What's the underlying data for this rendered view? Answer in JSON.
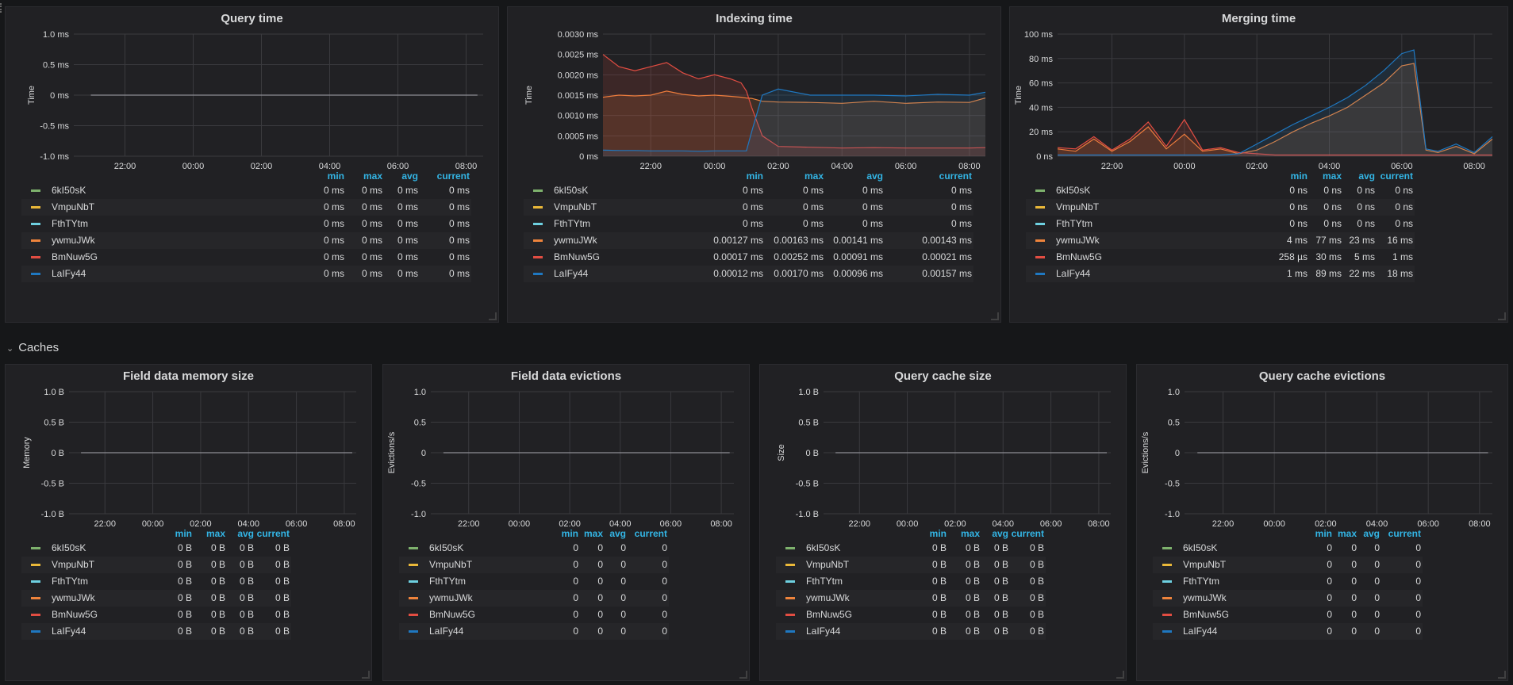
{
  "row_caches": {
    "label": "Caches",
    "chevron_icon": "chevron-down-icon"
  },
  "series_colors": [
    "#7eb26d",
    "#eab839",
    "#6ed0e0",
    "#ef843c",
    "#e24d42",
    "#1f78c1"
  ],
  "series_names": [
    "6kI50sK",
    "VmpuNbT",
    "FthTYtm",
    "ywmuJWk",
    "BmNuw5G",
    "LaIFy44"
  ],
  "legend_headers": [
    "min",
    "max",
    "avg",
    "current"
  ],
  "x_ticks": [
    "22:00",
    "00:00",
    "02:00",
    "04:00",
    "06:00",
    "08:00"
  ],
  "panels": [
    {
      "id": "query_time",
      "title": "Query time",
      "ylabel": "Time",
      "yticks": [
        "1.0 ms",
        "0.5 ms",
        "0 ms",
        "-0.5 ms",
        "-1.0 ms"
      ],
      "rows": [
        [
          "0 ms",
          "0 ms",
          "0 ms",
          "0 ms"
        ],
        [
          "0 ms",
          "0 ms",
          "0 ms",
          "0 ms"
        ],
        [
          "0 ms",
          "0 ms",
          "0 ms",
          "0 ms"
        ],
        [
          "0 ms",
          "0 ms",
          "0 ms",
          "0 ms"
        ],
        [
          "0 ms",
          "0 ms",
          "0 ms",
          "0 ms"
        ],
        [
          "0 ms",
          "0 ms",
          "0 ms",
          "0 ms"
        ]
      ]
    },
    {
      "id": "indexing_time",
      "title": "Indexing time",
      "ylabel": "Time",
      "yticks": [
        "0.0030 ms",
        "0.0025 ms",
        "0.0020 ms",
        "0.0015 ms",
        "0.0010 ms",
        "0.0005 ms",
        "0 ms"
      ],
      "rows": [
        [
          "0 ms",
          "0 ms",
          "0 ms",
          "0 ms"
        ],
        [
          "0 ms",
          "0 ms",
          "0 ms",
          "0 ms"
        ],
        [
          "0 ms",
          "0 ms",
          "0 ms",
          "0 ms"
        ],
        [
          "0.00127 ms",
          "0.00163 ms",
          "0.00141 ms",
          "0.00143 ms"
        ],
        [
          "0.00017 ms",
          "0.00252 ms",
          "0.00091 ms",
          "0.00021 ms"
        ],
        [
          "0.00012 ms",
          "0.00170 ms",
          "0.00096 ms",
          "0.00157 ms"
        ]
      ]
    },
    {
      "id": "merging_time",
      "title": "Merging time",
      "ylabel": "Time",
      "yticks": [
        "100 ms",
        "80 ms",
        "60 ms",
        "40 ms",
        "20 ms",
        "0 ns"
      ],
      "rows": [
        [
          "0 ns",
          "0 ns",
          "0 ns",
          "0 ns"
        ],
        [
          "0 ns",
          "0 ns",
          "0 ns",
          "0 ns"
        ],
        [
          "0 ns",
          "0 ns",
          "0 ns",
          "0 ns"
        ],
        [
          "4 ms",
          "77 ms",
          "23 ms",
          "16 ms"
        ],
        [
          "258 µs",
          "30 ms",
          "5 ms",
          "1 ms"
        ],
        [
          "1 ms",
          "89 ms",
          "22 ms",
          "18 ms"
        ]
      ]
    },
    {
      "id": "field_data_memory",
      "title": "Field data memory size",
      "ylabel": "Memory",
      "yticks": [
        "1.0 B",
        "0.5 B",
        "0 B",
        "-0.5 B",
        "-1.0 B"
      ],
      "rows": [
        [
          "0 B",
          "0 B",
          "0 B",
          "0 B"
        ],
        [
          "0 B",
          "0 B",
          "0 B",
          "0 B"
        ],
        [
          "0 B",
          "0 B",
          "0 B",
          "0 B"
        ],
        [
          "0 B",
          "0 B",
          "0 B",
          "0 B"
        ],
        [
          "0 B",
          "0 B",
          "0 B",
          "0 B"
        ],
        [
          "0 B",
          "0 B",
          "0 B",
          "0 B"
        ]
      ]
    },
    {
      "id": "field_data_evictions",
      "title": "Field data evictions",
      "ylabel": "Evictions/s",
      "yticks": [
        "1.0",
        "0.5",
        "0",
        "-0.5",
        "-1.0"
      ],
      "rows": [
        [
          "0",
          "0",
          "0",
          "0"
        ],
        [
          "0",
          "0",
          "0",
          "0"
        ],
        [
          "0",
          "0",
          "0",
          "0"
        ],
        [
          "0",
          "0",
          "0",
          "0"
        ],
        [
          "0",
          "0",
          "0",
          "0"
        ],
        [
          "0",
          "0",
          "0",
          "0"
        ]
      ]
    },
    {
      "id": "query_cache_size",
      "title": "Query cache size",
      "ylabel": "Size",
      "yticks": [
        "1.0 B",
        "0.5 B",
        "0 B",
        "-0.5 B",
        "-1.0 B"
      ],
      "rows": [
        [
          "0 B",
          "0 B",
          "0 B",
          "0 B"
        ],
        [
          "0 B",
          "0 B",
          "0 B",
          "0 B"
        ],
        [
          "0 B",
          "0 B",
          "0 B",
          "0 B"
        ],
        [
          "0 B",
          "0 B",
          "0 B",
          "0 B"
        ],
        [
          "0 B",
          "0 B",
          "0 B",
          "0 B"
        ],
        [
          "0 B",
          "0 B",
          "0 B",
          "0 B"
        ]
      ]
    },
    {
      "id": "query_cache_evictions",
      "title": "Query cache evictions",
      "ylabel": "Evictions/s",
      "yticks": [
        "1.0",
        "0.5",
        "0",
        "-0.5",
        "-1.0"
      ],
      "rows": [
        [
          "0",
          "0",
          "0",
          "0"
        ],
        [
          "0",
          "0",
          "0",
          "0"
        ],
        [
          "0",
          "0",
          "0",
          "0"
        ],
        [
          "0",
          "0",
          "0",
          "0"
        ],
        [
          "0",
          "0",
          "0",
          "0"
        ],
        [
          "0",
          "0",
          "0",
          "0"
        ]
      ]
    }
  ],
  "chart_data": [
    {
      "type": "line",
      "title": "Query time",
      "ylabel": "Time",
      "ylim": [
        -1,
        1
      ],
      "unit": "ms",
      "x": [
        "21:00",
        "22:00",
        "00:00",
        "02:00",
        "04:00",
        "06:00",
        "08:00",
        "08:20"
      ],
      "series": [
        {
          "name": "all series",
          "values": [
            0,
            0,
            0,
            0,
            0,
            0,
            0,
            0
          ]
        }
      ]
    },
    {
      "type": "area",
      "title": "Indexing time",
      "ylabel": "Time",
      "ylim": [
        0,
        0.003
      ],
      "unit": "ms",
      "x": [
        "20:30",
        "21:00",
        "21:30",
        "22:00",
        "22:30",
        "23:00",
        "23:30",
        "00:00",
        "00:30",
        "00:50",
        "01:00",
        "01:10",
        "01:30",
        "02:00",
        "03:00",
        "04:00",
        "05:00",
        "06:00",
        "07:00",
        "08:00",
        "08:30"
      ],
      "series": [
        {
          "name": "ywmuJWk",
          "values": [
            0.00145,
            0.0015,
            0.00148,
            0.0015,
            0.0016,
            0.00152,
            0.00148,
            0.0015,
            0.00147,
            0.00145,
            0.00143,
            0.00142,
            0.00135,
            0.00133,
            0.00132,
            0.0013,
            0.00135,
            0.0013,
            0.00133,
            0.00132,
            0.00143
          ]
        },
        {
          "name": "BmNuw5G",
          "values": [
            0.0025,
            0.0022,
            0.0021,
            0.0022,
            0.0023,
            0.00205,
            0.0019,
            0.002,
            0.0019,
            0.0018,
            0.0016,
            0.0012,
            0.0005,
            0.00024,
            0.00022,
            0.0002,
            0.00021,
            0.0002,
            0.0002,
            0.0002,
            0.00021
          ]
        },
        {
          "name": "LaIFy44",
          "values": [
            0.00015,
            0.00014,
            0.00014,
            0.00013,
            0.00013,
            0.00013,
            0.00012,
            0.00013,
            0.00013,
            0.00013,
            0.00013,
            0.0006,
            0.0015,
            0.00165,
            0.0015,
            0.0015,
            0.0015,
            0.00148,
            0.00152,
            0.0015,
            0.00157
          ]
        }
      ]
    },
    {
      "type": "area",
      "title": "Merging time",
      "ylabel": "Time",
      "ylim": [
        0,
        100
      ],
      "unit": "ms",
      "x": [
        "20:30",
        "21:00",
        "21:30",
        "22:00",
        "22:30",
        "23:00",
        "23:30",
        "00:00",
        "00:30",
        "01:00",
        "01:30",
        "02:00",
        "02:30",
        "03:00",
        "03:30",
        "04:00",
        "04:30",
        "05:00",
        "05:30",
        "06:00",
        "06:20",
        "06:40",
        "07:00",
        "07:30",
        "08:00",
        "08:30"
      ],
      "series": [
        {
          "name": "ywmuJWk",
          "values": [
            6,
            4,
            14,
            4,
            12,
            24,
            6,
            18,
            4,
            6,
            2,
            5,
            12,
            20,
            27,
            33,
            40,
            50,
            60,
            74,
            76,
            5,
            3,
            8,
            2,
            14
          ]
        },
        {
          "name": "BmNuw5G",
          "values": [
            7,
            6,
            16,
            5,
            14,
            28,
            8,
            30,
            5,
            7,
            3,
            2,
            1,
            1,
            1,
            1,
            1,
            1,
            1,
            1,
            1,
            1,
            1,
            1,
            1,
            1
          ]
        },
        {
          "name": "LaIFy44",
          "values": [
            1,
            1,
            1,
            1,
            1,
            1,
            1,
            1,
            1,
            1,
            2,
            10,
            18,
            26,
            33,
            40,
            48,
            58,
            70,
            84,
            87,
            6,
            4,
            10,
            3,
            16
          ]
        }
      ]
    },
    {
      "type": "line",
      "title": "Field data memory size",
      "ylabel": "Memory",
      "ylim": [
        -1,
        1
      ],
      "unit": "B",
      "x": [
        "21:00",
        "08:20"
      ],
      "series": [
        {
          "name": "all series",
          "values": [
            0,
            0
          ]
        }
      ]
    },
    {
      "type": "line",
      "title": "Field data evictions",
      "ylabel": "Evictions/s",
      "ylim": [
        -1,
        1
      ],
      "x": [
        "21:00",
        "08:20"
      ],
      "series": [
        {
          "name": "all series",
          "values": [
            0,
            0
          ]
        }
      ]
    },
    {
      "type": "line",
      "title": "Query cache size",
      "ylabel": "Size",
      "ylim": [
        -1,
        1
      ],
      "unit": "B",
      "x": [
        "21:00",
        "08:20"
      ],
      "series": [
        {
          "name": "all series",
          "values": [
            0,
            0
          ]
        }
      ]
    },
    {
      "type": "line",
      "title": "Query cache evictions",
      "ylabel": "Evictions/s",
      "ylim": [
        -1,
        1
      ],
      "x": [
        "21:00",
        "08:20"
      ],
      "series": [
        {
          "name": "all series",
          "values": [
            0,
            0
          ]
        }
      ]
    }
  ]
}
